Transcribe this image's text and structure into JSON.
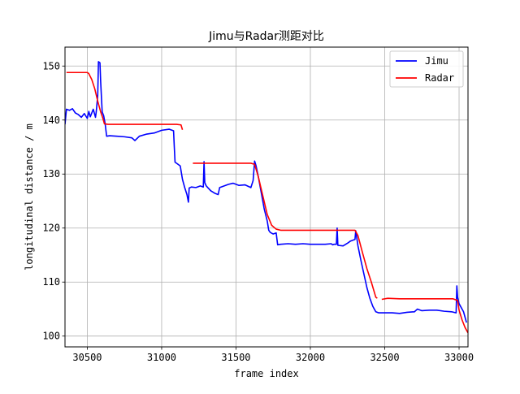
{
  "chart_data": {
    "type": "line",
    "title": "Jimu与Radar测距对比",
    "xlabel": "frame index",
    "ylabel": "longitudinal distance / m",
    "xlim": [
      30350,
      33060
    ],
    "ylim": [
      98,
      153.5
    ],
    "xticks": [
      30500,
      31000,
      31500,
      32000,
      32500,
      33000
    ],
    "yticks": [
      100,
      110,
      120,
      130,
      140,
      150
    ],
    "grid": true,
    "legend_position": "top-right",
    "colors": {
      "Jimu": "#0000ff",
      "Radar": "#ff0000",
      "grid": "#b0b0b0"
    },
    "series": [
      {
        "name": "Jimu",
        "segments": [
          [
            [
              30350,
              139.2
            ],
            [
              30360,
              142.0
            ],
            [
              30380,
              141.8
            ],
            [
              30400,
              142.1
            ],
            [
              30420,
              141.3
            ],
            [
              30440,
              141.0
            ],
            [
              30460,
              140.5
            ],
            [
              30480,
              141.2
            ],
            [
              30500,
              140.3
            ],
            [
              30510,
              141.6
            ],
            [
              30520,
              140.6
            ],
            [
              30540,
              142.0
            ],
            [
              30555,
              140.5
            ],
            [
              30560,
              141.5
            ],
            [
              30570,
              144.5
            ],
            [
              30575,
              150.8
            ],
            [
              30585,
              150.6
            ],
            [
              30590,
              147.0
            ],
            [
              30600,
              141.5
            ],
            [
              30610,
              140.8
            ],
            [
              30620,
              139.3
            ],
            [
              30630,
              137.0
            ],
            [
              30650,
              137.1
            ],
            [
              30700,
              137.0
            ],
            [
              30750,
              136.9
            ],
            [
              30800,
              136.7
            ],
            [
              30820,
              136.2
            ],
            [
              30850,
              137.0
            ],
            [
              30900,
              137.4
            ],
            [
              30950,
              137.6
            ],
            [
              31000,
              138.1
            ],
            [
              31050,
              138.3
            ],
            [
              31080,
              138.0
            ],
            [
              31085,
              135.0
            ],
            [
              31090,
              132.2
            ],
            [
              31110,
              131.8
            ],
            [
              31125,
              131.5
            ],
            [
              31140,
              129.0
            ],
            [
              31155,
              127.5
            ],
            [
              31170,
              126.2
            ],
            [
              31180,
              124.8
            ],
            [
              31185,
              127.4
            ],
            [
              31200,
              127.6
            ],
            [
              31230,
              127.5
            ],
            [
              31260,
              127.8
            ],
            [
              31280,
              127.6
            ],
            [
              31285,
              132.3
            ],
            [
              31290,
              128.4
            ],
            [
              31300,
              127.8
            ],
            [
              31330,
              126.9
            ],
            [
              31360,
              126.4
            ],
            [
              31380,
              126.2
            ],
            [
              31390,
              127.5
            ],
            [
              31420,
              127.8
            ],
            [
              31450,
              128.1
            ],
            [
              31480,
              128.3
            ],
            [
              31500,
              128.1
            ],
            [
              31520,
              127.9
            ],
            [
              31560,
              128.0
            ],
            [
              31600,
              127.5
            ],
            [
              31615,
              128.8
            ],
            [
              31625,
              132.4
            ],
            [
              31635,
              131.5
            ],
            [
              31650,
              129.5
            ],
            [
              31670,
              126.5
            ],
            [
              31690,
              123.5
            ],
            [
              31710,
              121.3
            ],
            [
              31720,
              119.6
            ],
            [
              31730,
              119.2
            ],
            [
              31750,
              118.9
            ],
            [
              31770,
              119.1
            ],
            [
              31780,
              116.9
            ],
            [
              31800,
              117.0
            ],
            [
              31850,
              117.1
            ],
            [
              31900,
              117.0
            ],
            [
              31950,
              117.1
            ],
            [
              32000,
              117.0
            ],
            [
              32050,
              117.0
            ],
            [
              32100,
              117.0
            ],
            [
              32140,
              117.1
            ],
            [
              32150,
              116.9
            ],
            [
              32160,
              117.0
            ],
            [
              32175,
              117.0
            ],
            [
              32180,
              120.0
            ],
            [
              32185,
              116.8
            ],
            [
              32220,
              116.7
            ],
            [
              32250,
              117.2
            ],
            [
              32270,
              117.6
            ],
            [
              32290,
              117.8
            ],
            [
              32300,
              117.9
            ],
            [
              32305,
              119.5
            ],
            [
              32320,
              116.7
            ],
            [
              32340,
              114.0
            ],
            [
              32360,
              111.5
            ],
            [
              32380,
              109.0
            ],
            [
              32400,
              107.0
            ],
            [
              32420,
              105.5
            ],
            [
              32440,
              104.5
            ],
            [
              32460,
              104.3
            ],
            [
              32500,
              104.3
            ],
            [
              32550,
              104.3
            ],
            [
              32600,
              104.2
            ],
            [
              32650,
              104.4
            ],
            [
              32700,
              104.5
            ],
            [
              32720,
              105.0
            ],
            [
              32750,
              104.7
            ],
            [
              32800,
              104.8
            ],
            [
              32850,
              104.8
            ],
            [
              32900,
              104.6
            ],
            [
              32950,
              104.5
            ],
            [
              32980,
              104.3
            ],
            [
              32985,
              109.3
            ],
            [
              32990,
              107.2
            ],
            [
              33000,
              106.0
            ],
            [
              33030,
              104.5
            ],
            [
              33050,
              102.5
            ]
          ]
        ]
      },
      {
        "name": "Radar",
        "segments": [
          [
            [
              30360,
              148.8
            ],
            [
              30400,
              148.8
            ],
            [
              30450,
              148.8
            ],
            [
              30500,
              148.8
            ],
            [
              30510,
              148.6
            ],
            [
              30530,
              147.5
            ],
            [
              30550,
              145.8
            ],
            [
              30570,
              143.5
            ],
            [
              30590,
              141.5
            ],
            [
              30605,
              140.3
            ],
            [
              30615,
              139.3
            ],
            [
              30640,
              139.2
            ],
            [
              30700,
              139.2
            ],
            [
              30800,
              139.2
            ],
            [
              30900,
              139.2
            ],
            [
              31000,
              139.2
            ],
            [
              31100,
              139.2
            ],
            [
              31130,
              139.1
            ],
            [
              31140,
              138.2
            ]
          ],
          [
            [
              31210,
              132.0
            ],
            [
              31300,
              132.0
            ],
            [
              31400,
              132.0
            ],
            [
              31500,
              132.0
            ],
            [
              31600,
              132.0
            ],
            [
              31625,
              131.8
            ],
            [
              31650,
              129.5
            ],
            [
              31680,
              126.0
            ],
            [
              31710,
              122.5
            ],
            [
              31740,
              120.5
            ],
            [
              31770,
              119.8
            ],
            [
              31800,
              119.6
            ],
            [
              31900,
              119.6
            ],
            [
              32000,
              119.6
            ],
            [
              32100,
              119.6
            ],
            [
              32200,
              119.6
            ],
            [
              32300,
              119.6
            ],
            [
              32320,
              118.6
            ],
            [
              32350,
              115.5
            ],
            [
              32380,
              112.5
            ],
            [
              32410,
              110.0
            ],
            [
              32440,
              107.2
            ],
            [
              32450,
              107.0
            ]
          ],
          [
            [
              32480,
              106.8
            ],
            [
              32520,
              107.0
            ],
            [
              32600,
              106.9
            ],
            [
              32700,
              106.9
            ],
            [
              32800,
              106.9
            ],
            [
              32900,
              106.9
            ],
            [
              32960,
              106.9
            ],
            [
              32990,
              106.6
            ],
            [
              33000,
              104.8
            ],
            [
              33020,
              103.0
            ],
            [
              33040,
              101.6
            ],
            [
              33060,
              100.6
            ]
          ]
        ]
      }
    ]
  }
}
